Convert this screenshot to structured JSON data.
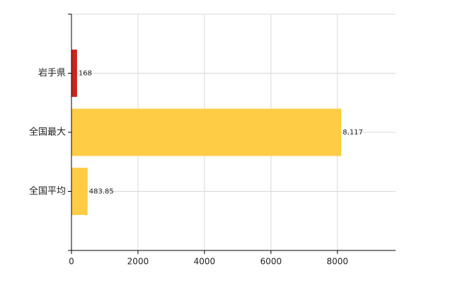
{
  "chart_data": {
    "type": "hbar",
    "categories": [
      "岩手県",
      "全国最大",
      "全国平均"
    ],
    "values": [
      168,
      8117,
      483.85
    ],
    "value_labels": [
      "168",
      "8,117",
      "483.85"
    ],
    "colors": [
      "#c8261e",
      "#ffcc44",
      "#ffcc44"
    ],
    "xlim": [
      0,
      9750
    ],
    "xticks": [
      0,
      2000,
      4000,
      6000,
      8000
    ],
    "grid": true
  }
}
